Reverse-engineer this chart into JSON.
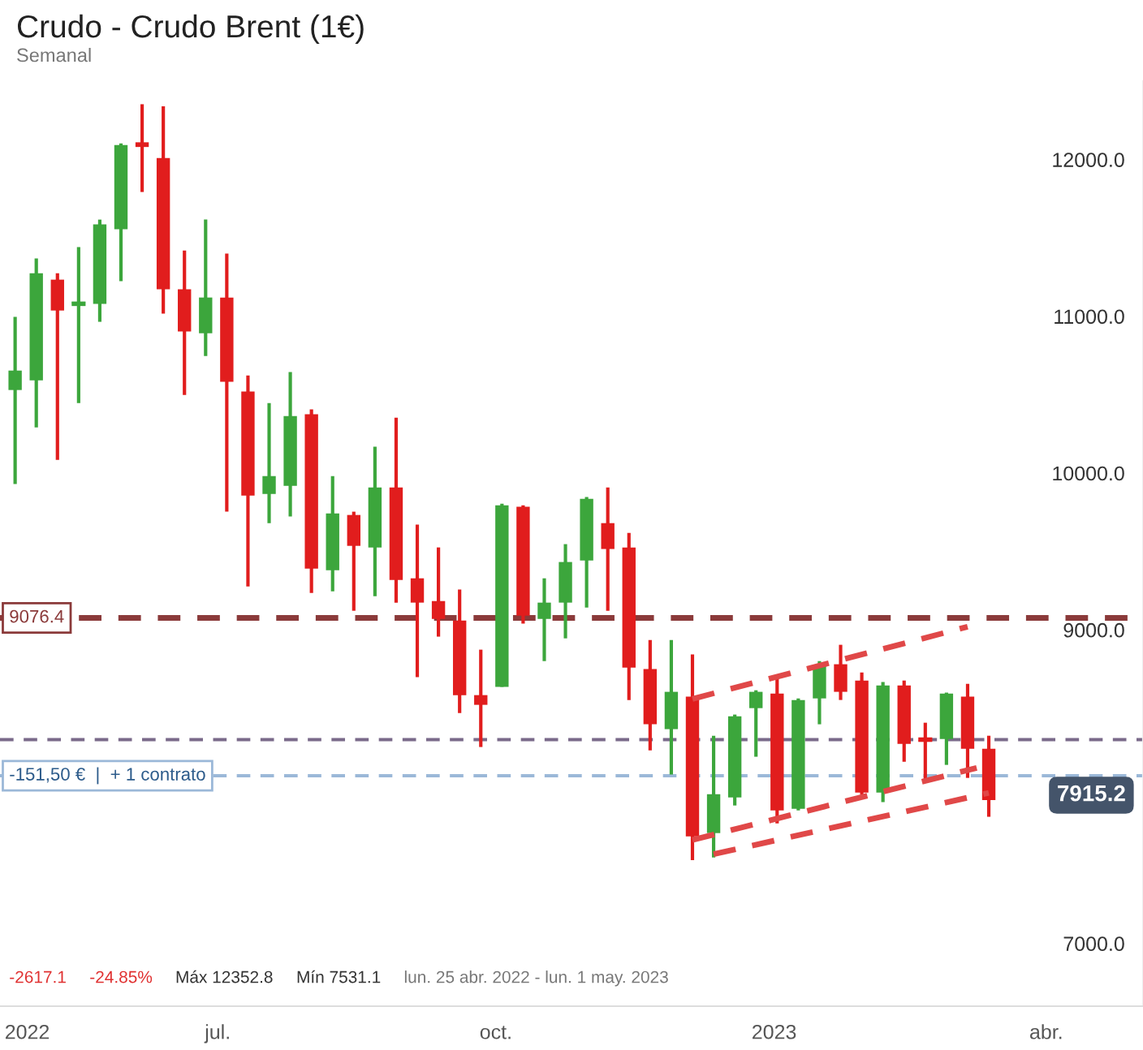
{
  "chart_data": {
    "type": "candlestick",
    "title": "Crudo - Crudo Brent (1€)",
    "subtitle": "Semanal",
    "x": [
      "2022-04-25",
      "2022-05-02",
      "2022-05-09",
      "2022-05-16",
      "2022-05-23",
      "2022-05-30",
      "2022-06-06",
      "2022-06-13",
      "2022-06-20",
      "2022-06-27",
      "2022-07-04",
      "2022-07-11",
      "2022-07-18",
      "2022-07-25",
      "2022-08-01",
      "2022-08-08",
      "2022-08-15",
      "2022-08-22",
      "2022-08-29",
      "2022-09-05",
      "2022-09-12",
      "2022-09-19",
      "2022-09-26",
      "2022-10-03",
      "2022-10-10",
      "2022-10-17",
      "2022-10-24",
      "2022-10-31",
      "2022-11-07",
      "2022-11-14",
      "2022-11-21",
      "2022-11-28",
      "2022-12-05",
      "2022-12-12",
      "2022-12-19",
      "2022-12-26",
      "2023-01-02",
      "2023-01-09",
      "2023-01-16",
      "2023-01-23",
      "2023-01-30",
      "2023-02-06",
      "2023-02-13",
      "2023-02-20",
      "2023-02-27",
      "2023-03-06",
      "2023-03-13"
    ],
    "ohlc": [
      [
        10530,
        10996,
        9930,
        10654
      ],
      [
        10592,
        11369,
        10292,
        11275
      ],
      [
        11234,
        11275,
        10085,
        11037
      ],
      [
        11080,
        11441,
        10447,
        11092
      ],
      [
        11079,
        11617,
        10965,
        11586
      ],
      [
        11555,
        12103,
        11224,
        12093
      ],
      [
        12110,
        12352.8,
        11793,
        12080
      ],
      [
        12010,
        12340,
        11017,
        11172
      ],
      [
        11172,
        11420,
        10499,
        10903
      ],
      [
        10892,
        11617,
        10747,
        11120
      ],
      [
        11120,
        11400,
        9754,
        10582
      ],
      [
        10520,
        10623,
        9277,
        9857
      ],
      [
        9867,
        10447,
        9681,
        9981
      ],
      [
        9919,
        10644,
        9723,
        10364
      ],
      [
        10375,
        10406,
        9236,
        9391
      ],
      [
        9381,
        9981,
        9246,
        9743
      ],
      [
        9733,
        9754,
        9122,
        9536
      ],
      [
        9526,
        10168,
        9215,
        9909
      ],
      [
        9909,
        10354,
        9174,
        9319
      ],
      [
        9329,
        9671,
        8698,
        9174
      ],
      [
        9184,
        9526,
        8957,
        9070
      ],
      [
        9060,
        9257,
        8470,
        8584
      ],
      [
        8584,
        8874,
        8253,
        8522
      ],
      [
        8636,
        9805,
        8636,
        9795
      ],
      [
        9785,
        9795,
        9040,
        9091
      ],
      [
        9070,
        9329,
        8801,
        9174
      ],
      [
        9174,
        9547,
        8946,
        9433
      ],
      [
        9443,
        9847,
        9143,
        9836
      ],
      [
        9681,
        9909,
        9122,
        9516
      ],
      [
        9526,
        9619,
        8553,
        8760
      ],
      [
        8750,
        8936,
        8232,
        8398
      ],
      [
        8367,
        8936,
        8077,
        8605
      ],
      [
        8574,
        8843,
        7531.1,
        7683
      ],
      [
        7704,
        8325,
        7549,
        7952
      ],
      [
        7932,
        8460,
        7880,
        8449
      ],
      [
        8501,
        8615,
        8191,
        8605
      ],
      [
        8594,
        8698,
        7766,
        7849
      ],
      [
        7859,
        8563,
        7849,
        8553
      ],
      [
        8563,
        8801,
        8398,
        8770
      ],
      [
        8781,
        8905,
        8553,
        8605
      ],
      [
        8677,
        8729,
        7950,
        7963
      ],
      [
        7963,
        8667,
        7901,
        8646
      ],
      [
        8646,
        8677,
        8159,
        8273
      ],
      [
        8300,
        8408,
        8035,
        8290
      ],
      [
        8304,
        8600,
        8139,
        8594
      ],
      [
        8574,
        8656,
        8056,
        8242
      ],
      [
        8242,
        8325,
        7808,
        7915.2
      ]
    ],
    "colors": [
      "#3ca63c",
      "#3ca63c",
      "#e11d1d",
      "#3ca63c",
      "#3ca63c",
      "#3ca63c",
      "#e11d1d",
      "#e11d1d",
      "#e11d1d",
      "#3ca63c",
      "#e11d1d",
      "#e11d1d",
      "#3ca63c",
      "#3ca63c",
      "#e11d1d",
      "#3ca63c",
      "#e11d1d",
      "#3ca63c",
      "#e11d1d",
      "#e11d1d",
      "#e11d1d",
      "#e11d1d",
      "#e11d1d",
      "#3ca63c",
      "#e11d1d",
      "#3ca63c",
      "#3ca63c",
      "#3ca63c",
      "#e11d1d",
      "#e11d1d",
      "#e11d1d",
      "#3ca63c",
      "#e11d1d",
      "#3ca63c",
      "#3ca63c",
      "#3ca63c",
      "#e11d1d",
      "#3ca63c",
      "#3ca63c",
      "#e11d1d",
      "#e11d1d",
      "#3ca63c",
      "#e11d1d",
      "#e11d1d",
      "#3ca63c",
      "#e11d1d",
      "#e11d1d"
    ],
    "series": [
      {
        "type": "line",
        "x": [
          "2022-12-05",
          "2023-03-06"
        ],
        "values": [
          8560,
          9020
        ],
        "color": "#e04848",
        "line_style": "dashed"
      },
      {
        "type": "line",
        "x": [
          "2022-12-05",
          "2023-03-09"
        ],
        "values": [
          7660,
          8120
        ],
        "color": "#e04848",
        "line_style": "dashed"
      },
      {
        "type": "line",
        "x": [
          "2022-12-12",
          "2023-03-13"
        ],
        "values": [
          7570,
          7960
        ],
        "color": "#e04848",
        "line_style": "dashed"
      }
    ],
    "ref_lines": [
      {
        "axis": "y",
        "value": 9076.4,
        "label": "9076.4",
        "color": "#8b3a3a",
        "line_style": "dashed"
      },
      {
        "axis": "y",
        "value": 8300,
        "color": "#7a6a8a",
        "line_style": "dashed"
      },
      {
        "axis": "y",
        "value": 8070,
        "label": "-151,50 €  |  + 1 contrato",
        "color": "#9bb8d8",
        "line_style": "dashed"
      }
    ],
    "annotations": [
      "-2617.1",
      "-24.85%",
      "Máx 12352.8",
      "Mín 7531.1",
      "lun. 25 abr. 2022 - lun. 1 may. 2023",
      "7915.2"
    ],
    "xlim": [
      "2022-04-20",
      "2023-05-03"
    ],
    "xticks": [
      {
        "value": "2022-04-29",
        "label": "2022"
      },
      {
        "value": "2022-07-01",
        "label": "jul."
      },
      {
        "value": "2022-10-01",
        "label": "oct."
      },
      {
        "value": "2023-01-01",
        "label": "2023"
      },
      {
        "value": "2023-04-01",
        "label": "abr."
      }
    ],
    "ylim": [
      6600,
      12500
    ],
    "yticks": [
      {
        "value": 7000,
        "label": "7000.0"
      },
      {
        "value": 9000,
        "label": "9000.0"
      },
      {
        "value": 10000,
        "label": "10000.0"
      },
      {
        "value": 11000,
        "label": "11000.0"
      },
      {
        "value": 12000,
        "label": "12000.0"
      }
    ]
  }
}
